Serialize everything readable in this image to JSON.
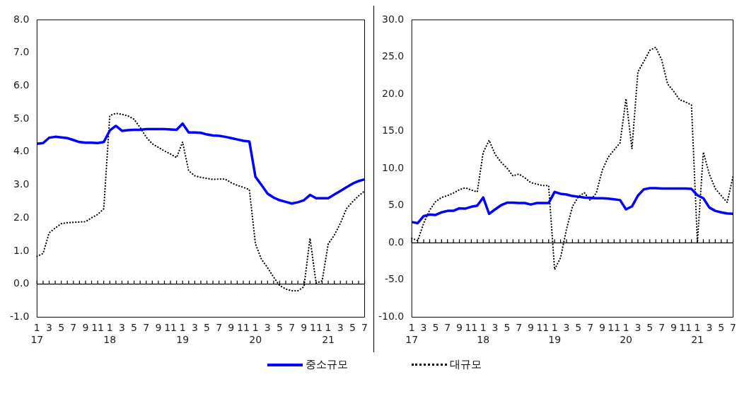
{
  "chart_data": [
    {
      "type": "line",
      "categories": [
        "1\n17",
        null,
        "3",
        null,
        "5",
        null,
        "7",
        null,
        "9",
        null,
        "11",
        null,
        "1\n18",
        null,
        "3",
        null,
        "5",
        null,
        "7",
        null,
        "9",
        null,
        "11",
        null,
        "1\n19",
        null,
        "3",
        null,
        "5",
        null,
        "7",
        null,
        "9",
        null,
        "11",
        null,
        "1\n20",
        null,
        "3",
        null,
        "5",
        null,
        "7",
        null,
        "9",
        null,
        "11",
        null,
        "1\n21",
        null,
        "3",
        null,
        "5",
        null,
        "7"
      ],
      "series": [
        {
          "name": "중소규모",
          "color": "#0000ff",
          "line_style": "solid",
          "values": [
            4.25,
            4.27,
            4.43,
            4.46,
            4.44,
            4.42,
            4.36,
            4.3,
            4.28,
            4.28,
            4.27,
            4.3,
            4.65,
            4.79,
            4.64,
            4.66,
            4.67,
            4.67,
            4.69,
            4.69,
            4.69,
            4.69,
            4.68,
            4.67,
            4.86,
            4.59,
            4.59,
            4.58,
            4.53,
            4.5,
            4.49,
            4.46,
            4.42,
            4.38,
            4.34,
            4.32,
            3.25,
            3.0,
            2.74,
            2.62,
            2.54,
            2.49,
            2.44,
            2.48,
            2.54,
            2.7,
            2.6,
            2.6,
            2.6,
            2.71,
            2.82,
            2.93,
            3.04,
            3.12,
            3.17
          ]
        },
        {
          "name": "대규모",
          "color": "#000000",
          "line_style": "dotted",
          "values": [
            0.84,
            0.93,
            1.55,
            1.7,
            1.83,
            1.86,
            1.87,
            1.88,
            1.89,
            2.01,
            2.11,
            2.28,
            5.1,
            5.17,
            5.14,
            5.09,
            4.99,
            4.74,
            4.45,
            4.25,
            4.14,
            4.03,
            3.94,
            3.83,
            4.3,
            3.43,
            3.28,
            3.23,
            3.2,
            3.17,
            3.18,
            3.18,
            3.07,
            2.99,
            2.93,
            2.86,
            1.22,
            0.75,
            0.5,
            0.21,
            -0.04,
            -0.15,
            -0.2,
            -0.2,
            -0.08,
            1.39,
            0.03,
            0.1,
            1.22,
            1.48,
            1.84,
            2.28,
            2.49,
            2.67,
            2.82
          ]
        }
      ],
      "ylim": [
        -1,
        8
      ],
      "yticks": [
        {
          "value": -1,
          "label": "-1.0"
        },
        {
          "value": 0,
          "label": "0.0"
        },
        {
          "value": 1,
          "label": "1.0"
        },
        {
          "value": 2,
          "label": "2.0"
        },
        {
          "value": 3,
          "label": "3.0"
        },
        {
          "value": 4,
          "label": "4.0"
        },
        {
          "value": 5,
          "label": "5.0"
        },
        {
          "value": 6,
          "label": "6.0"
        },
        {
          "value": 7,
          "label": "7.0"
        },
        {
          "value": 8,
          "label": "8.0"
        }
      ],
      "ref_lines": [
        {
          "axis": "y",
          "value": 0,
          "color": "#000000"
        }
      ],
      "grid": false,
      "marker": "none",
      "legend": "bottom"
    },
    {
      "type": "line",
      "categories": [
        "1\n17",
        null,
        "3",
        null,
        "5",
        null,
        "7",
        null,
        "9",
        null,
        "11",
        null,
        "1\n18",
        null,
        "3",
        null,
        "5",
        null,
        "7",
        null,
        "9",
        null,
        "11",
        null,
        "1\n19",
        null,
        "3",
        null,
        "5",
        null,
        "7",
        null,
        "9",
        null,
        "11",
        null,
        "1\n20",
        null,
        "3",
        null,
        "5",
        null,
        "7",
        null,
        "9",
        null,
        "11",
        null,
        "1\n21",
        null,
        "3",
        null,
        "5",
        null,
        "7"
      ],
      "series": [
        {
          "color": "#0000ff",
          "line_style": "solid",
          "values": [
            2.8,
            2.65,
            3.6,
            3.8,
            3.75,
            4.1,
            4.3,
            4.3,
            4.65,
            4.6,
            4.85,
            5.0,
            6.1,
            3.9,
            4.5,
            5.05,
            5.4,
            5.4,
            5.35,
            5.35,
            5.15,
            5.35,
            5.35,
            5.35,
            6.85,
            6.6,
            6.5,
            6.3,
            6.2,
            6.1,
            6.05,
            6.0,
            6.0,
            5.95,
            5.85,
            5.75,
            4.5,
            4.9,
            6.35,
            7.2,
            7.35,
            7.35,
            7.3,
            7.3,
            7.3,
            7.3,
            7.3,
            7.25,
            6.4,
            6.0,
            4.75,
            4.3,
            4.1,
            3.95,
            3.9
          ]
        },
        {
          "color": "#000000",
          "line_style": "dotted",
          "values": [
            0.6,
            0.3,
            2.65,
            4.4,
            5.55,
            6.1,
            6.35,
            6.7,
            7.15,
            7.4,
            7.1,
            6.85,
            12.15,
            13.8,
            11.9,
            10.85,
            10.05,
            9.0,
            9.25,
            8.75,
            8.1,
            7.9,
            7.7,
            7.7,
            -3.6,
            -2.0,
            1.85,
            4.9,
            6.2,
            6.75,
            5.7,
            6.7,
            9.75,
            11.5,
            12.5,
            13.45,
            19.4,
            12.65,
            23.0,
            24.4,
            25.9,
            26.3,
            24.6,
            21.35,
            20.4,
            19.25,
            18.95,
            18.55,
            0.05,
            12.2,
            9.25,
            7.3,
            6.35,
            5.45,
            9.0
          ]
        }
      ],
      "ylim": [
        -10,
        30
      ],
      "yticks": [
        {
          "value": -10,
          "label": "-10.0"
        },
        {
          "value": -5,
          "label": "-5.0"
        },
        {
          "value": 0,
          "label": "0.0"
        },
        {
          "value": 5,
          "label": "5.0"
        },
        {
          "value": 10,
          "label": "10.0"
        },
        {
          "value": 15,
          "label": "15.0"
        },
        {
          "value": 20,
          "label": "20.0"
        },
        {
          "value": 25,
          "label": "25.0"
        },
        {
          "value": 30,
          "label": "30.0"
        }
      ],
      "ref_lines": [
        {
          "axis": "y",
          "value": 0,
          "color": "#000000"
        }
      ],
      "grid": false,
      "marker": "none"
    }
  ]
}
